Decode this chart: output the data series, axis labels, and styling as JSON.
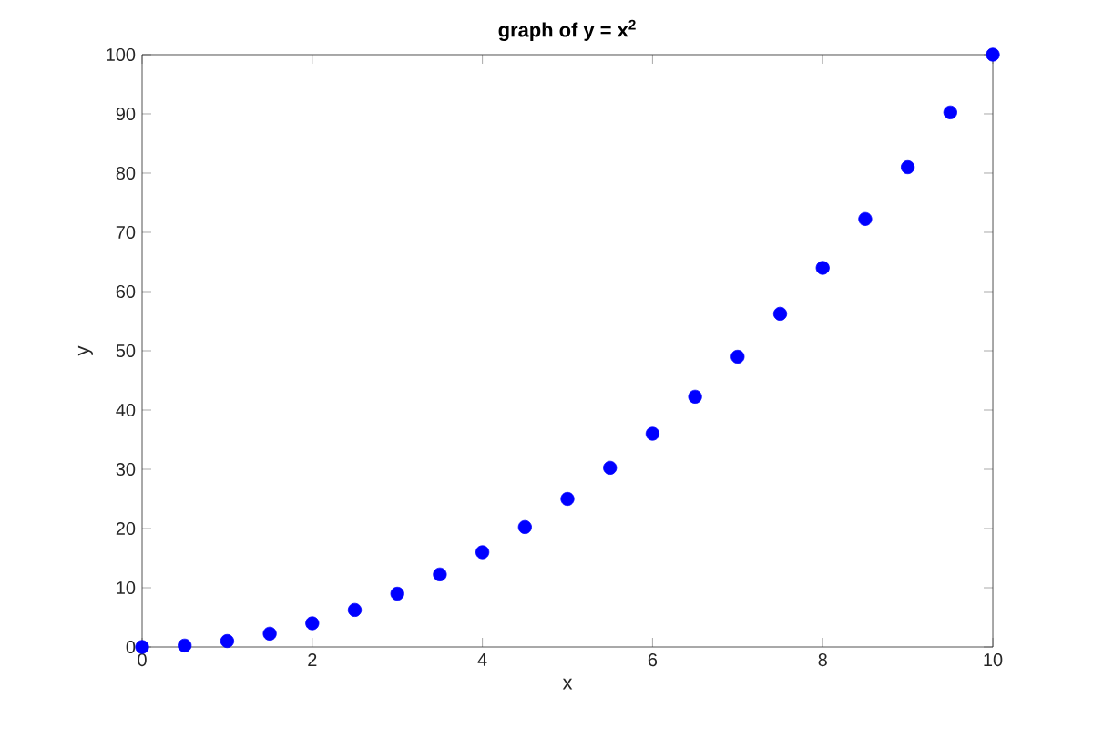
{
  "chart_data": {
    "type": "scatter",
    "title": "graph of y = x$^{2}$",
    "xlabel": "x",
    "ylabel": "y",
    "x": [
      0,
      0.5,
      1,
      1.5,
      2,
      2.5,
      3,
      3.5,
      4,
      4.5,
      5,
      5.5,
      6,
      6.5,
      7,
      7.5,
      8,
      8.5,
      9,
      9.5,
      10
    ],
    "values": [
      0,
      0.25,
      1,
      2.25,
      4,
      6.25,
      9,
      12.25,
      16,
      20.25,
      25,
      30.25,
      36,
      42.25,
      49,
      56.25,
      64,
      72.25,
      81,
      90.25,
      100
    ],
    "color": "#0000ff",
    "marker": "circle",
    "xlim": [
      0,
      10
    ],
    "ylim": [
      0,
      100
    ],
    "xticks": [
      0,
      2,
      4,
      6,
      8,
      10
    ],
    "yticks": [
      0,
      10,
      20,
      30,
      40,
      50,
      60,
      70,
      80,
      90,
      100
    ],
    "grid": false
  }
}
